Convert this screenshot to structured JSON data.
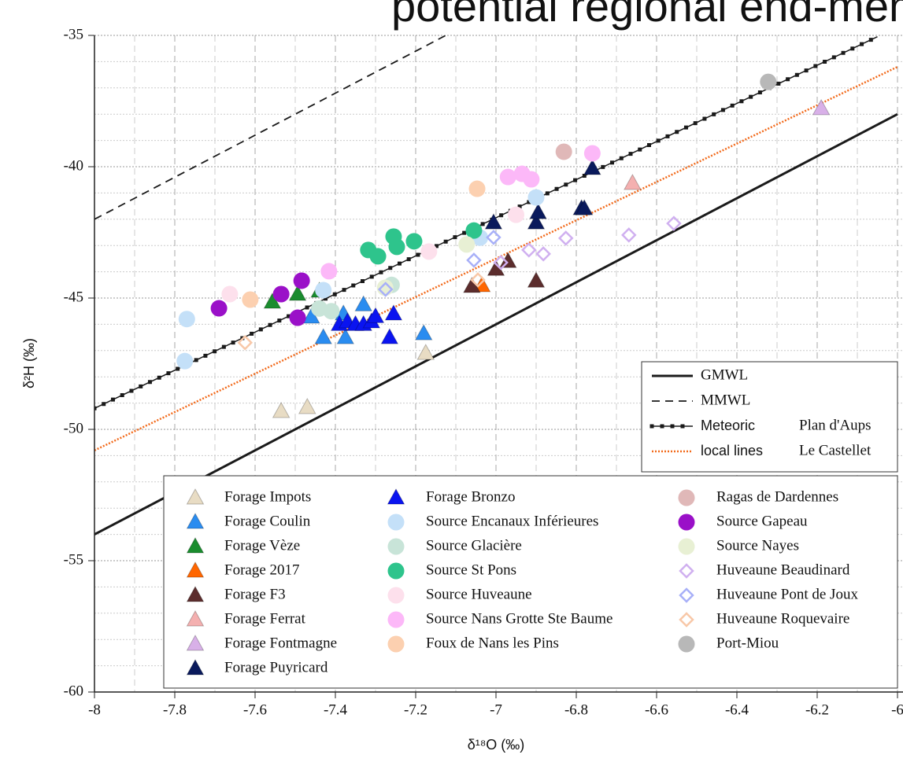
{
  "chart_data": {
    "type": "scatter",
    "title": "potential regional end-members",
    "x_label": "δ¹⁸O (‰)",
    "y_label": "δ²H (‰)",
    "xlim": [
      -8,
      -6
    ],
    "ylim": [
      -60,
      -35
    ],
    "xticks": [
      -8,
      -7.8,
      -7.6,
      -7.4,
      -7.2,
      -7,
      -6.8,
      -6.6,
      -6.4,
      -6.2,
      -6
    ],
    "yticks": [
      -60,
      -55,
      -50,
      -45,
      -40,
      -35
    ],
    "x_minor_ticks": [
      -7.9,
      -7.7,
      -7.5,
      -7.3,
      -7.1,
      -6.9,
      -6.7,
      -6.5,
      -6.3,
      -6.1
    ],
    "y_minor_ticks": [
      -59,
      -58,
      -57,
      -56,
      -54,
      -53,
      -52,
      -51,
      -49,
      -48,
      -47,
      -46,
      -44,
      -43,
      -42,
      -41,
      -39,
      -38,
      -37,
      -36
    ],
    "grid": true,
    "lines": [
      {
        "name": "GMWL",
        "color": "#1a1a1a",
        "style": "solid",
        "x": [
          -8,
          -6
        ],
        "values": [
          -54,
          -38
        ]
      },
      {
        "name": "MMWL",
        "color": "#1a1a1a",
        "style": "dashed",
        "x": [
          -8,
          -7.125
        ],
        "values": [
          -42,
          -35
        ]
      },
      {
        "name": "Meteoric",
        "site": "Plan d'Aups",
        "color": "#1a1a1a",
        "style": "dotted-markers",
        "x": [
          -8,
          -6.05
        ],
        "values": [
          -49.2,
          -35.05
        ]
      },
      {
        "name": "local lines",
        "site": "Le Castellet",
        "color": "#f26a1b",
        "style": "dotted",
        "x": [
          -8,
          -6
        ],
        "values": [
          -50.8,
          -36.2
        ]
      }
    ],
    "series": [
      {
        "name": "Forage Impots",
        "marker": "triangle",
        "color": "#e8dcc4",
        "x": [
          -7.535,
          -7.47,
          -7.175
        ],
        "values": [
          -49.31,
          -49.16,
          -47.1
        ]
      },
      {
        "name": "Forage Coulin",
        "marker": "triangle",
        "color": "#2a8cf0",
        "x": [
          -7.46,
          -7.43,
          -7.375,
          -7.38,
          -7.33,
          -7.18
        ],
        "values": [
          -45.72,
          -46.5,
          -46.5,
          -45.6,
          -45.25,
          -46.35
        ]
      },
      {
        "name": "Forage Vèze",
        "marker": "triangle",
        "color": "#1a8c2e",
        "x": [
          -7.557,
          -7.494,
          -7.44
        ],
        "values": [
          -45.15,
          -44.85,
          -44.73
        ]
      },
      {
        "name": "Forage 2017",
        "marker": "triangle",
        "color": "#ff6600",
        "x": [
          -7.035
        ],
        "values": [
          -44.52
        ]
      },
      {
        "name": "Forage F3",
        "marker": "triangle",
        "color": "#5c2d2d",
        "x": [
          -7.06,
          -7.0,
          -6.97,
          -6.9
        ],
        "values": [
          -44.55,
          -43.9,
          -43.6,
          -44.35
        ]
      },
      {
        "name": "Forage Ferrat",
        "marker": "triangle",
        "color": "#f4b0b0",
        "x": [
          -6.66
        ],
        "values": [
          -40.63
        ]
      },
      {
        "name": "Forage Fontmagne",
        "marker": "triangle",
        "color": "#d8b0e8",
        "x": [
          -6.19
        ],
        "values": [
          -37.78
        ]
      },
      {
        "name": "Forage Puyricard",
        "marker": "triangle",
        "color": "#0a1a5c",
        "x": [
          -7.006,
          -6.9,
          -6.895,
          -6.787,
          -6.78,
          -6.76
        ],
        "values": [
          -42.13,
          -42.13,
          -41.74,
          -41.59,
          -41.59,
          -40.06
        ]
      },
      {
        "name": "Forage Bronzo",
        "marker": "triangle",
        "color": "#0a14f0",
        "x": [
          -7.39,
          -7.37,
          -7.35,
          -7.33,
          -7.31,
          -7.3,
          -7.265,
          -7.255
        ],
        "values": [
          -46.0,
          -45.9,
          -46.0,
          -46.0,
          -45.9,
          -45.7,
          -46.5,
          -45.6
        ]
      },
      {
        "name": "Source Encanaux Inférieures",
        "marker": "circle",
        "color": "#c4e0f8",
        "x": [
          -7.775,
          -7.77,
          -7.43,
          -6.9,
          -7.04
        ],
        "values": [
          -47.4,
          -45.8,
          -44.7,
          -41.17,
          -42.7
        ]
      },
      {
        "name": "Source Glacière",
        "marker": "circle",
        "color": "#c8e4d8",
        "x": [
          -7.44,
          -7.41,
          -7.26
        ],
        "values": [
          -45.4,
          -45.5,
          -44.5
        ]
      },
      {
        "name": "Source St Pons",
        "marker": "circle",
        "color": "#2ec48c",
        "x": [
          -7.318,
          -7.294,
          -7.255,
          -7.247,
          -7.204,
          -7.055
        ],
        "values": [
          -43.17,
          -43.41,
          -42.66,
          -43.05,
          -42.84,
          -42.43
        ]
      },
      {
        "name": "Source Huveaune",
        "marker": "circle",
        "color": "#fde0ec",
        "x": [
          -7.663,
          -7.167,
          -6.95
        ],
        "values": [
          -44.85,
          -43.23,
          -41.83
        ]
      },
      {
        "name": "Source Nans Grotte Ste Baume",
        "marker": "circle",
        "color": "#fcb8f8",
        "x": [
          -7.416,
          -6.97,
          -6.935,
          -6.912,
          -6.76
        ],
        "values": [
          -43.98,
          -40.39,
          -40.27,
          -40.48,
          -39.49
        ]
      },
      {
        "name": "Foux de Nans les Pins",
        "marker": "circle",
        "color": "#fcd0b0",
        "x": [
          -7.612,
          -7.047
        ],
        "values": [
          -45.06,
          -40.84
        ]
      },
      {
        "name": "Ragas de Dardennes",
        "marker": "circle",
        "color": "#e0b8b8",
        "x": [
          -6.831
        ],
        "values": [
          -39.43
        ]
      },
      {
        "name": "Source Gapeau",
        "marker": "circle",
        "color": "#9a10c8",
        "x": [
          -7.69,
          -7.535,
          -7.484,
          -7.494
        ],
        "values": [
          -45.39,
          -44.85,
          -44.34,
          -45.75
        ]
      },
      {
        "name": "Source Nayes",
        "marker": "circle",
        "color": "#e8f0d4",
        "x": [
          -7.073,
          -7.276
        ],
        "values": [
          -42.96,
          -44.61
        ]
      },
      {
        "name": "Huveaune Beaudinard",
        "marker": "diamond",
        "color": "#d0b0f0",
        "x": [
          -6.669,
          -6.557,
          -6.826,
          -6.882,
          -6.918,
          -6.988
        ],
        "values": [
          -42.6,
          -42.16,
          -42.72,
          -43.32,
          -43.17,
          -43.65
        ]
      },
      {
        "name": "Huveaune Pont de Joux",
        "marker": "diamond",
        "color": "#a8b0f8",
        "x": [
          -7.275,
          -7.055,
          -7.006
        ],
        "values": [
          -44.67,
          -43.56,
          -42.69
        ]
      },
      {
        "name": "Huveaune Roquevaire",
        "marker": "diamond",
        "color": "#f8c8a8",
        "x": [
          -7.625,
          -7.045
        ],
        "values": [
          -46.7,
          -44.31
        ]
      },
      {
        "name": "Port-Miou",
        "marker": "circle",
        "color": "#b8b8b8",
        "x": [
          -6.322
        ],
        "values": [
          -36.77
        ]
      }
    ]
  }
}
